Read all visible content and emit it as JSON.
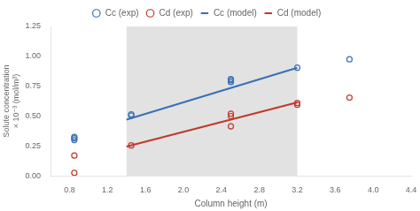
{
  "chart_data": {
    "type": "line",
    "xlabel": "Column height (m)",
    "ylabel": "Solute concentration × 10⁻³ (mol/m³)",
    "xlim": [
      0.6,
      4.4
    ],
    "ylim": [
      0.0,
      1.25
    ],
    "xticks": [
      0.8,
      1.2,
      1.6,
      {
        "value": 2.0,
        "label": "2.0"
      },
      2.4,
      2.8,
      3.2,
      3.6,
      {
        "value": 4.0,
        "label": "4.0"
      },
      4.4
    ],
    "yticks": [
      {
        "value": 0.0,
        "label": "0.00"
      },
      0.25,
      {
        "value": 0.5,
        "label": "0.50"
      },
      0.75,
      {
        "value": 1.0,
        "label": "1.00"
      },
      1.25
    ],
    "span": {
      "x": [
        1.4,
        3.2
      ],
      "color": "#e2e2e2"
    },
    "grid": false,
    "legend": "top",
    "series": [
      {
        "name": "Cc (model)",
        "type": "line",
        "line_style": "solid",
        "color": "#3a6fb5",
        "x": [
          1.4,
          3.2
        ],
        "values": [
          0.47,
          0.905
        ]
      },
      {
        "name": "Cd (model)",
        "type": "line",
        "line_style": "solid",
        "color": "#c0392b",
        "x": [
          1.4,
          3.2
        ],
        "values": [
          0.245,
          0.615
        ]
      },
      {
        "name": "Cc (exp)",
        "type": "scatter",
        "marker": "circle",
        "color": "#3a6fb5",
        "x": [
          0.85,
          0.85,
          0.85,
          1.45,
          1.45,
          2.5,
          2.5,
          2.5,
          3.2,
          3.75
        ],
        "values": [
          0.3,
          0.315,
          0.325,
          0.505,
          0.515,
          0.785,
          0.8,
          0.81,
          0.905,
          0.975
        ]
      },
      {
        "name": "Cd (exp)",
        "type": "scatter",
        "marker": "circle",
        "color": "#c0392b",
        "x": [
          0.85,
          0.85,
          1.45,
          2.5,
          2.5,
          2.5,
          3.2,
          3.2,
          3.75
        ],
        "values": [
          0.17,
          0.025,
          0.255,
          0.415,
          0.5,
          0.52,
          0.595,
          0.61,
          0.655
        ]
      }
    ]
  }
}
